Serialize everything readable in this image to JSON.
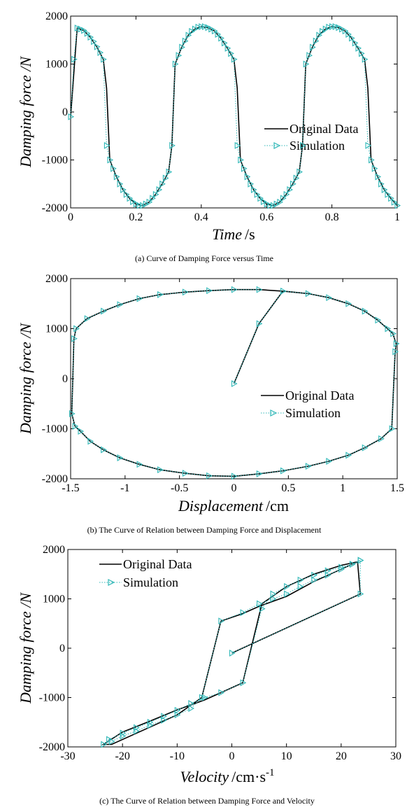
{
  "colors": {
    "original": "#000000",
    "simulation": "#2fb7b7"
  },
  "chart_data": [
    {
      "type": "line",
      "caption": "(a) Curve of Damping Force versus Time",
      "ylabel": "Damping force /N",
      "xlabel_main": "Time",
      "xlabel_unit": "/s",
      "xlim": [
        0,
        1
      ],
      "ylim": [
        -2000,
        2000
      ],
      "xticks": [
        0,
        0.2,
        0.4,
        0.6,
        0.8,
        1
      ],
      "xtick_labels": [
        "0",
        "0.2",
        "0.4",
        "0.6",
        "0.8",
        "1"
      ],
      "yticks": [
        -2000,
        -1000,
        0,
        1000,
        2000
      ],
      "ytick_labels": [
        "-2000",
        "-1000",
        "0",
        "1000",
        "2000"
      ],
      "legend": [
        "Original Data",
        "Simulation"
      ],
      "legend_position": "middle-right",
      "series": [
        {
          "name": "Original Data",
          "x": [
            0,
            0.02,
            0.04,
            0.06,
            0.08,
            0.1,
            0.11,
            0.12,
            0.14,
            0.16,
            0.18,
            0.2,
            0.22,
            0.24,
            0.26,
            0.28,
            0.3,
            0.31,
            0.32,
            0.34,
            0.36,
            0.38,
            0.4,
            0.42,
            0.44,
            0.46,
            0.48,
            0.5,
            0.51,
            0.52,
            0.54,
            0.56,
            0.58,
            0.6,
            0.62,
            0.64,
            0.66,
            0.68,
            0.7,
            0.71,
            0.72,
            0.74,
            0.76,
            0.78,
            0.8,
            0.82,
            0.84,
            0.86,
            0.88,
            0.9,
            0.91,
            0.92,
            0.94,
            0.96,
            0.98,
            1.0
          ],
          "y": [
            -100,
            1750,
            1700,
            1560,
            1360,
            1100,
            500,
            -1000,
            -1350,
            -1620,
            -1800,
            -1920,
            -1950,
            -1880,
            -1720,
            -1500,
            -1250,
            -700,
            1000,
            1350,
            1600,
            1730,
            1780,
            1760,
            1690,
            1540,
            1330,
            1100,
            500,
            -1000,
            -1350,
            -1620,
            -1800,
            -1920,
            -1950,
            -1880,
            -1720,
            -1500,
            -1250,
            -700,
            1000,
            1350,
            1600,
            1730,
            1780,
            1760,
            1690,
            1540,
            1330,
            1100,
            500,
            -1000,
            -1350,
            -1620,
            -1800,
            -1950
          ]
        },
        {
          "name": "Simulation",
          "x": [
            0,
            0.01,
            0.02,
            0.03,
            0.04,
            0.05,
            0.06,
            0.07,
            0.08,
            0.09,
            0.1,
            0.11,
            0.12,
            0.13,
            0.14,
            0.15,
            0.16,
            0.17,
            0.18,
            0.19,
            0.2,
            0.21,
            0.22,
            0.23,
            0.24,
            0.25,
            0.26,
            0.27,
            0.28,
            0.29,
            0.3,
            0.31,
            0.32,
            0.33,
            0.34,
            0.35,
            0.36,
            0.37,
            0.38,
            0.39,
            0.4,
            0.41,
            0.42,
            0.43,
            0.44,
            0.45,
            0.46,
            0.47,
            0.48,
            0.49,
            0.5,
            0.51,
            0.52,
            0.53,
            0.54,
            0.55,
            0.56,
            0.57,
            0.58,
            0.59,
            0.6,
            0.61,
            0.62,
            0.63,
            0.64,
            0.65,
            0.66,
            0.67,
            0.68,
            0.69,
            0.7,
            0.71,
            0.72,
            0.73,
            0.74,
            0.75,
            0.76,
            0.77,
            0.78,
            0.79,
            0.8,
            0.81,
            0.82,
            0.83,
            0.84,
            0.85,
            0.86,
            0.87,
            0.88,
            0.89,
            0.9,
            0.91,
            0.92,
            0.93,
            0.94,
            0.95,
            0.96,
            0.97,
            0.98,
            0.99,
            1.0
          ],
          "y": [
            -100,
            1100,
            1750,
            1730,
            1700,
            1640,
            1560,
            1470,
            1360,
            1240,
            1100,
            -700,
            -1000,
            -1180,
            -1350,
            -1500,
            -1620,
            -1720,
            -1800,
            -1870,
            -1920,
            -1950,
            -1950,
            -1920,
            -1880,
            -1800,
            -1720,
            -1620,
            -1500,
            -1380,
            -1250,
            -700,
            1000,
            1180,
            1350,
            1480,
            1600,
            1680,
            1730,
            1770,
            1780,
            1780,
            1760,
            1730,
            1690,
            1620,
            1540,
            1440,
            1330,
            1220,
            1100,
            -700,
            -1000,
            -1180,
            -1350,
            -1500,
            -1620,
            -1720,
            -1800,
            -1870,
            -1920,
            -1950,
            -1950,
            -1920,
            -1880,
            -1800,
            -1720,
            -1620,
            -1500,
            -1380,
            -1250,
            -700,
            1000,
            1180,
            1350,
            1480,
            1600,
            1680,
            1730,
            1770,
            1780,
            1780,
            1760,
            1730,
            1690,
            1620,
            1540,
            1440,
            1330,
            1220,
            1100,
            -700,
            -1000,
            -1180,
            -1350,
            -1500,
            -1620,
            -1720,
            -1800,
            -1880,
            -1950
          ]
        }
      ]
    },
    {
      "type": "line",
      "caption": "(b) The Curve of Relation between Damping Force and Displacement",
      "ylabel": "Damping force /N",
      "xlabel_main": "Displacement",
      "xlabel_unit": "/cm",
      "xlim": [
        -1.5,
        1.5
      ],
      "ylim": [
        -2000,
        2000
      ],
      "xticks": [
        -1.5,
        -1,
        -0.5,
        0,
        0.5,
        1,
        1.5
      ],
      "xtick_labels": [
        "-1.5",
        "-1",
        "-0.5",
        "0",
        "0.5",
        "1",
        "1.5"
      ],
      "yticks": [
        -2000,
        -1000,
        0,
        1000,
        2000
      ],
      "ytick_labels": [
        "-2000",
        "-1000",
        "0",
        "1000",
        "2000"
      ],
      "legend": [
        "Original Data",
        "Simulation"
      ],
      "legend_position": "middle-right",
      "series": [
        {
          "name": "Original Data",
          "x": [
            0,
            0.23,
            0.45,
            0.68,
            0.87,
            1.05,
            1.2,
            1.32,
            1.41,
            1.46,
            1.49,
            1.48,
            1.47,
            1.45,
            1.35,
            1.2,
            1.05,
            0.87,
            0.68,
            0.45,
            0.23,
            0,
            -0.23,
            -0.45,
            -0.68,
            -0.87,
            -1.05,
            -1.2,
            -1.32,
            -1.41,
            -1.46,
            -1.49,
            -1.48,
            -1.47,
            -1.45,
            -1.35,
            -1.2,
            -1.05,
            -0.87,
            -0.68,
            -0.45,
            -0.23,
            0,
            0.23,
            0.45
          ],
          "y": [
            -100,
            1100,
            1750,
            1700,
            1620,
            1500,
            1350,
            1170,
            1000,
            900,
            700,
            500,
            0,
            -1000,
            -1200,
            -1380,
            -1530,
            -1650,
            -1750,
            -1840,
            -1900,
            -1950,
            -1940,
            -1890,
            -1820,
            -1710,
            -1580,
            -1420,
            -1250,
            -1050,
            -950,
            -700,
            0,
            800,
            1000,
            1200,
            1350,
            1480,
            1600,
            1680,
            1730,
            1760,
            1780,
            1780,
            1750
          ]
        },
        {
          "name": "Simulation",
          "x": [
            0,
            0.23,
            0.45,
            0.68,
            0.87,
            1.05,
            1.2,
            1.32,
            1.41,
            1.46,
            1.49,
            1.48,
            1.45,
            1.35,
            1.2,
            1.05,
            0.87,
            0.68,
            0.45,
            0.23,
            0,
            -0.23,
            -0.45,
            -0.68,
            -0.87,
            -1.05,
            -1.2,
            -1.32,
            -1.41,
            -1.46,
            -1.49,
            -1.47,
            -1.45,
            -1.35,
            -1.2,
            -1.05,
            -0.87,
            -0.68,
            -0.45,
            -0.23,
            0,
            0.23
          ],
          "y": [
            -100,
            1100,
            1750,
            1700,
            1620,
            1500,
            1350,
            1170,
            1000,
            900,
            700,
            540,
            -1000,
            -1200,
            -1380,
            -1530,
            -1650,
            -1750,
            -1840,
            -1900,
            -1950,
            -1940,
            -1890,
            -1820,
            -1710,
            -1580,
            -1420,
            -1250,
            -1050,
            -950,
            -700,
            800,
            1000,
            1200,
            1350,
            1480,
            1600,
            1680,
            1730,
            1760,
            1780,
            1780
          ]
        }
      ]
    },
    {
      "type": "line",
      "caption": "(c) The Curve of Relation between Damping Force and Velocity",
      "ylabel": "Damping force /N",
      "xlabel_main": "Velocity",
      "xlabel_unit": "/cm·s",
      "xlabel_sup": "-1",
      "xlim": [
        -30,
        30
      ],
      "ylim": [
        -2000,
        2000
      ],
      "xticks": [
        -30,
        -20,
        -10,
        0,
        10,
        20,
        30
      ],
      "xtick_labels": [
        "-30",
        "-20",
        "-10",
        "0",
        "10",
        "20",
        "30"
      ],
      "yticks": [
        -2000,
        -1000,
        0,
        1000,
        2000
      ],
      "ytick_labels": [
        "-2000",
        "-1000",
        "0",
        "1000",
        "2000"
      ],
      "legend": [
        "Original Data",
        "Simulation"
      ],
      "legend_position": "top-left",
      "series": [
        {
          "name": "Original Data",
          "x": [
            0,
            23.5,
            23,
            20,
            15,
            10,
            5.5,
            2,
            -2,
            -5,
            -10,
            -15,
            -20,
            -23.5,
            -22,
            -15,
            -10,
            -5.5,
            -2,
            2,
            5,
            10,
            15,
            20,
            23
          ],
          "y": [
            -100,
            1100,
            1750,
            1680,
            1500,
            1250,
            900,
            -700,
            -900,
            -1050,
            -1250,
            -1480,
            -1700,
            -1950,
            -1950,
            -1600,
            -1350,
            -1000,
            550,
            700,
            850,
            1050,
            1350,
            1600,
            1750
          ]
        },
        {
          "name": "Simulation",
          "x": [
            0,
            23.5,
            23.5,
            22,
            20,
            17.5,
            15,
            12.5,
            10,
            7.5,
            5.5,
            2,
            -2,
            -5,
            -7.5,
            -10,
            -12.5,
            -15,
            -17.5,
            -20,
            -22.5,
            -23.5,
            -22,
            -20,
            -17.5,
            -15,
            -12.5,
            -10,
            -7.5,
            -5.5,
            -2,
            2,
            5,
            7.5,
            10,
            12.5,
            15,
            17.5,
            20,
            22,
            23.5
          ],
          "y": [
            -100,
            1100,
            1780,
            1700,
            1640,
            1570,
            1480,
            1380,
            1250,
            1100,
            800,
            -700,
            -900,
            -1000,
            -1120,
            -1260,
            -1380,
            -1500,
            -1610,
            -1720,
            -1850,
            -1950,
            -1890,
            -1780,
            -1680,
            -1560,
            -1460,
            -1350,
            -1220,
            -1000,
            550,
            720,
            900,
            1000,
            1100,
            1250,
            1380,
            1480,
            1600,
            1700,
            1780
          ]
        }
      ]
    }
  ]
}
